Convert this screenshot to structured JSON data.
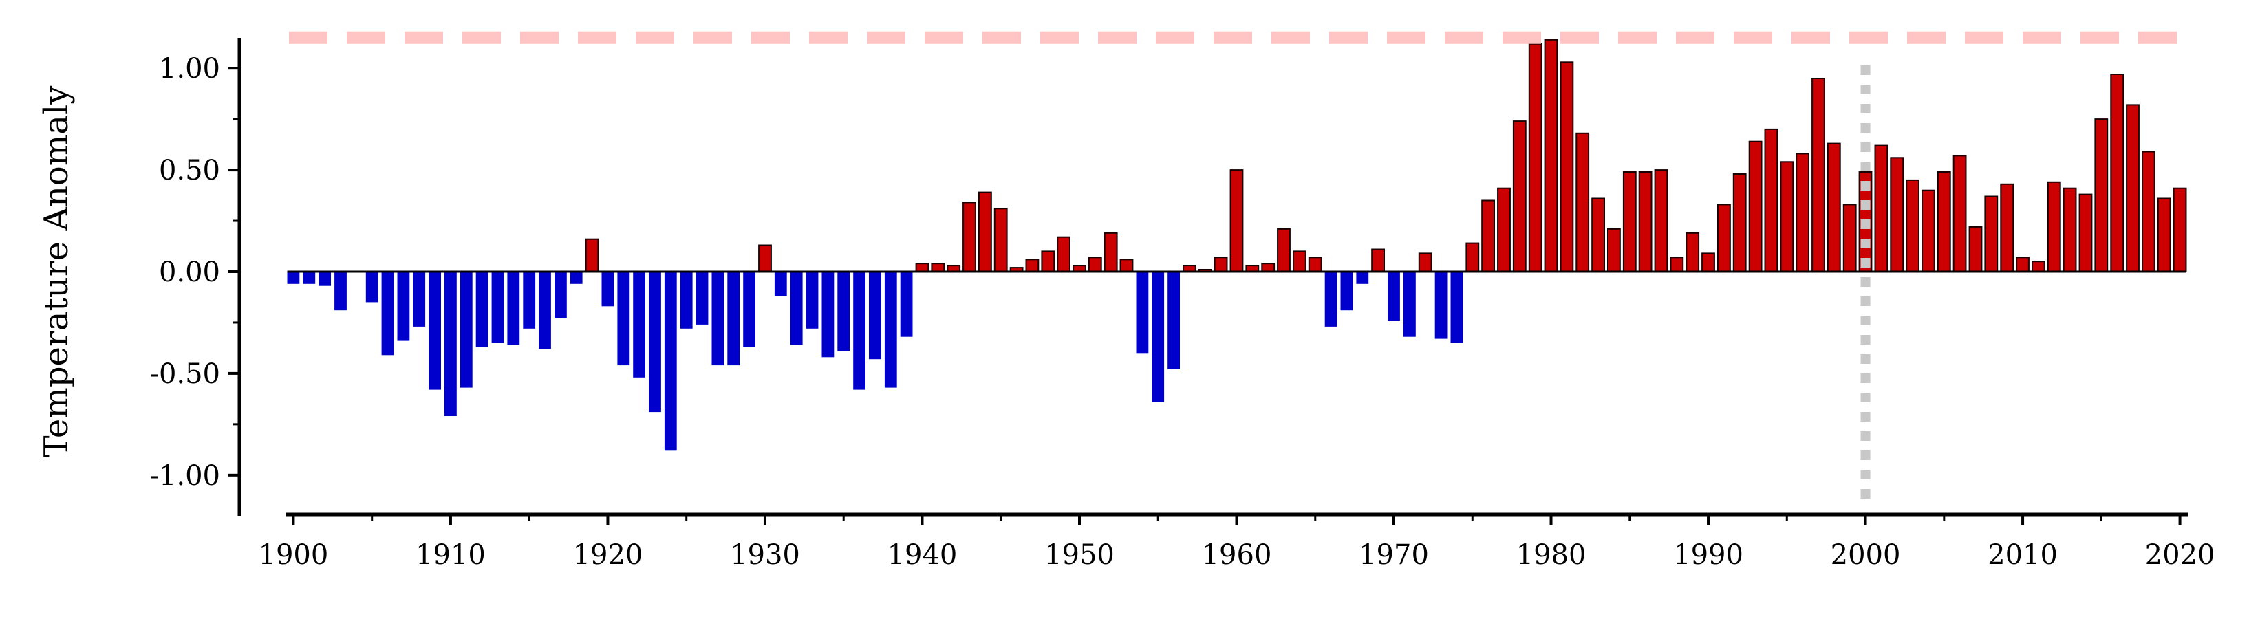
{
  "chart_data": {
    "type": "bar",
    "title": "",
    "xlabel": "",
    "ylabel": "Temperature Anomaly",
    "xlim": [
      1899.5,
      2020.5
    ],
    "ylim": [
      -1.2,
      1.2
    ],
    "xticks": [
      1900,
      1910,
      1920,
      1930,
      1940,
      1950,
      1960,
      1970,
      1980,
      1990,
      2000,
      2010,
      2020
    ],
    "xtick_labels": [
      "1900",
      "1910",
      "1920",
      "1930",
      "1940",
      "1950",
      "1960",
      "1970",
      "1980",
      "1990",
      "2000",
      "2010",
      "2020"
    ],
    "yticks": [
      -1.0,
      -0.5,
      0.0,
      0.5,
      1.0
    ],
    "ytick_labels": [
      "-1.00",
      "-0.50",
      "0.00",
      "0.50",
      "1.00"
    ],
    "grid": false,
    "colors": {
      "positive": "#cc0000",
      "negative": "#0000cc",
      "reference_hline": "#ffc4c4",
      "reference_vline": "#c8c8c8"
    },
    "reference_lines": [
      {
        "orientation": "horizontal",
        "value": 1.15,
        "style": "dashed"
      },
      {
        "orientation": "vertical",
        "value": 2000,
        "style": "dotted"
      }
    ],
    "years": [
      1900,
      1901,
      1902,
      1903,
      1904,
      1905,
      1906,
      1907,
      1908,
      1909,
      1910,
      1911,
      1912,
      1913,
      1914,
      1915,
      1916,
      1917,
      1918,
      1919,
      1920,
      1921,
      1922,
      1923,
      1924,
      1925,
      1926,
      1927,
      1928,
      1929,
      1930,
      1931,
      1932,
      1933,
      1934,
      1935,
      1936,
      1937,
      1938,
      1939,
      1940,
      1941,
      1942,
      1943,
      1944,
      1945,
      1946,
      1947,
      1948,
      1949,
      1950,
      1951,
      1952,
      1953,
      1954,
      1955,
      1956,
      1957,
      1958,
      1959,
      1960,
      1961,
      1962,
      1963,
      1964,
      1965,
      1966,
      1967,
      1968,
      1969,
      1970,
      1971,
      1972,
      1973,
      1974,
      1975,
      1976,
      1977,
      1978,
      1979,
      1980,
      1981,
      1982,
      1983,
      1984,
      1985,
      1986,
      1987,
      1988,
      1989,
      1990,
      1991,
      1992,
      1993,
      1994,
      1995,
      1996,
      1997,
      1998,
      1999,
      2000,
      2001,
      2002,
      2003,
      2004,
      2005,
      2006,
      2007,
      2008,
      2009,
      2010,
      2011,
      2012,
      2013,
      2014,
      2015,
      2016,
      2017,
      2018,
      2019,
      2020
    ],
    "values": [
      -0.06,
      -0.06,
      -0.07,
      -0.19,
      0.0,
      -0.15,
      -0.41,
      -0.34,
      -0.27,
      -0.58,
      -0.71,
      -0.57,
      -0.37,
      -0.35,
      -0.36,
      -0.28,
      -0.38,
      -0.23,
      -0.06,
      0.16,
      -0.17,
      -0.46,
      -0.52,
      -0.69,
      -0.88,
      -0.28,
      -0.26,
      -0.46,
      -0.46,
      -0.37,
      0.13,
      -0.12,
      -0.36,
      -0.28,
      -0.42,
      -0.39,
      -0.58,
      -0.43,
      -0.57,
      -0.32,
      0.04,
      0.04,
      0.03,
      0.34,
      0.39,
      0.31,
      0.02,
      0.06,
      0.1,
      0.17,
      0.03,
      0.07,
      0.19,
      0.06,
      -0.4,
      -0.64,
      -0.48,
      0.03,
      0.01,
      0.07,
      0.5,
      0.03,
      0.04,
      0.21,
      0.1,
      0.07,
      -0.27,
      -0.19,
      -0.06,
      0.11,
      -0.24,
      -0.32,
      0.09,
      -0.33,
      -0.35,
      0.14,
      0.35,
      0.41,
      0.74,
      1.12,
      1.14,
      1.03,
      0.68,
      0.36,
      0.21,
      0.49,
      0.49,
      0.5,
      0.07,
      0.19,
      0.09,
      0.33,
      0.48,
      0.64,
      0.7,
      0.54,
      0.58,
      0.95,
      0.63,
      0.33,
      0.49,
      0.62,
      0.56,
      0.45,
      0.4,
      0.49,
      0.57,
      0.22,
      0.37,
      0.43,
      0.07,
      0.05,
      0.44,
      0.41,
      0.38,
      0.75,
      0.97,
      0.82,
      0.59,
      0.36,
      0.41
    ]
  }
}
